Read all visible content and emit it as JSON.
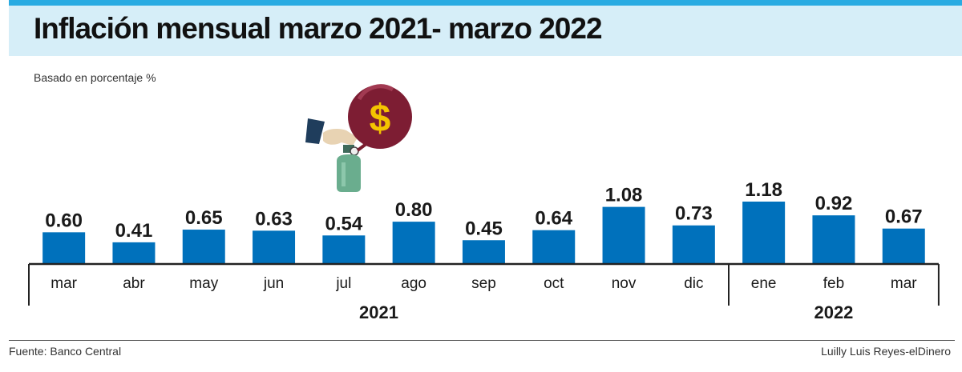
{
  "header": {
    "title": "Inflación mensual marzo 2021- marzo 2022",
    "subtitle": "Basado en porcentaje %"
  },
  "footer": {
    "source": "Fuente: Banco Central",
    "credit": "Luilly Luis Reyes-elDinero"
  },
  "colors": {
    "bar": "#0071bc",
    "accent": "#29abe2",
    "title_band": "#d6eef8"
  },
  "illustration": {
    "icons": [
      "hand-icon",
      "gas-cylinder-icon",
      "dollar-balloon-icon"
    ]
  },
  "chart_data": {
    "type": "bar",
    "categories": [
      "mar",
      "abr",
      "may",
      "jun",
      "jul",
      "ago",
      "sep",
      "oct",
      "nov",
      "dic",
      "ene",
      "feb",
      "mar"
    ],
    "values": [
      0.6,
      0.41,
      0.65,
      0.63,
      0.54,
      0.8,
      0.45,
      0.64,
      1.08,
      0.73,
      1.18,
      0.92,
      0.67
    ],
    "value_labels": [
      "0.60",
      "0.41",
      "0.65",
      "0.63",
      "0.54",
      "0.80",
      "0.45",
      "0.64",
      "1.08",
      "0.73",
      "1.18",
      "0.92",
      "0.67"
    ],
    "year_groups": [
      {
        "label": "2021",
        "start": 0,
        "end": 9
      },
      {
        "label": "2022",
        "start": 10,
        "end": 12
      }
    ],
    "title": "Inflación mensual marzo 2021- marzo 2022",
    "ylabel": "Basado en porcentaje %",
    "ylim": [
      0,
      1.18
    ],
    "grid": false,
    "legend": "none"
  }
}
